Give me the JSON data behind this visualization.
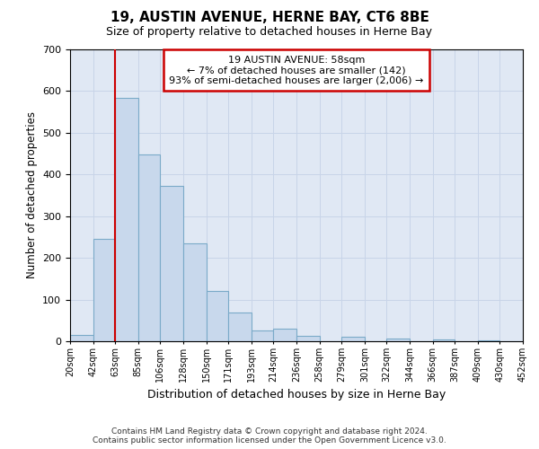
{
  "title": "19, AUSTIN AVENUE, HERNE BAY, CT6 8BE",
  "subtitle": "Size of property relative to detached houses in Herne Bay",
  "xlabel": "Distribution of detached houses by size in Herne Bay",
  "ylabel": "Number of detached properties",
  "footer_line1": "Contains HM Land Registry data © Crown copyright and database right 2024.",
  "footer_line2": "Contains public sector information licensed under the Open Government Licence v3.0.",
  "annotation_title": "19 AUSTIN AVENUE: 58sqm",
  "annotation_line2": "← 7% of detached houses are smaller (142)",
  "annotation_line3": "93% of semi-detached houses are larger (2,006) →",
  "bar_color": "#c8d8ec",
  "bar_edge_color": "#7aaac8",
  "red_line_x": 63,
  "bin_edges": [
    20,
    42,
    63,
    85,
    106,
    128,
    150,
    171,
    193,
    214,
    236,
    258,
    279,
    301,
    322,
    344,
    366,
    387,
    409,
    430,
    452
  ],
  "bar_heights": [
    15,
    245,
    583,
    447,
    373,
    235,
    120,
    68,
    25,
    30,
    13,
    0,
    10,
    0,
    7,
    0,
    5,
    0,
    3,
    0
  ],
  "ylim": [
    0,
    700
  ],
  "yticks": [
    0,
    100,
    200,
    300,
    400,
    500,
    600,
    700
  ],
  "grid_color": "#c8d4e8",
  "annotation_box_color": "#ffffff",
  "annotation_box_edge_color": "#cc0000",
  "red_line_color": "#cc0000",
  "bg_color": "#e0e8f4",
  "fig_bg_color": "#ffffff"
}
